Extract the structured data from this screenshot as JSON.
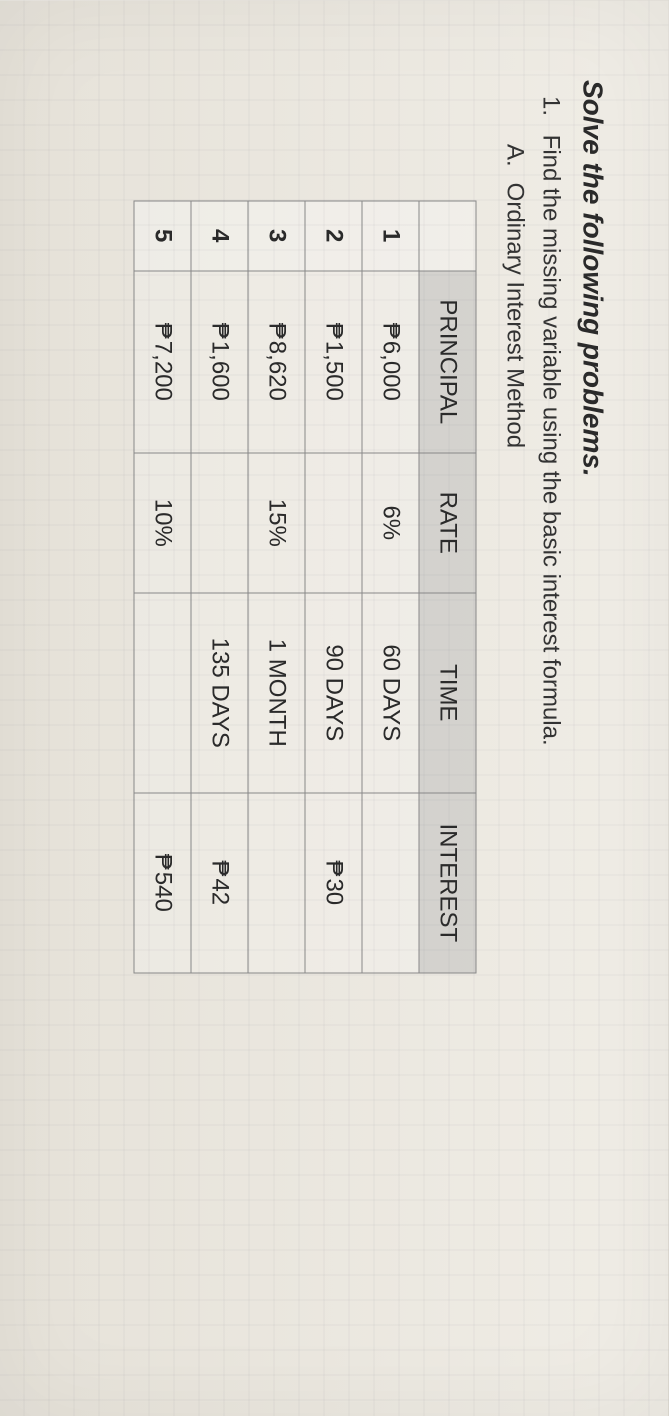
{
  "heading": "Solve the following problems.",
  "question_num": "1.",
  "question_text": "Find the missing variable using the basic interest formula.",
  "sub_letter": "A.",
  "sub_text": "Ordinary Interest Method",
  "table": {
    "columns": [
      "PRINCIPAL",
      "RATE",
      "TIME",
      "INTEREST"
    ],
    "rows": [
      {
        "num": "1",
        "principal": "6,000",
        "rate": "6%",
        "time": "60 DAYS",
        "interest": ""
      },
      {
        "num": "2",
        "principal": "1,500",
        "rate": "",
        "time": "90 DAYS",
        "interest": "30"
      },
      {
        "num": "3",
        "principal": "8,620",
        "rate": "15%",
        "time": "1 MONTH",
        "interest": ""
      },
      {
        "num": "4",
        "principal": "1,600",
        "rate": "",
        "time": "135 DAYS",
        "interest": "42"
      },
      {
        "num": "5",
        "principal": "7,200",
        "rate": "10%",
        "time": "",
        "interest": "540"
      }
    ]
  }
}
